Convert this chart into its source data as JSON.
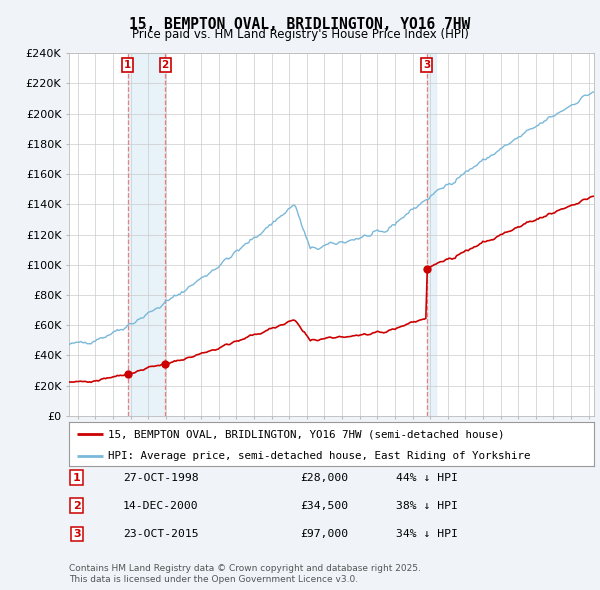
{
  "title": "15, BEMPTON OVAL, BRIDLINGTON, YO16 7HW",
  "subtitle": "Price paid vs. HM Land Registry's House Price Index (HPI)",
  "legend_entry1": "15, BEMPTON OVAL, BRIDLINGTON, YO16 7HW (semi-detached house)",
  "legend_entry2": "HPI: Average price, semi-detached house, East Riding of Yorkshire",
  "sale_dates": [
    "27-OCT-1998",
    "14-DEC-2000",
    "23-OCT-2015"
  ],
  "sale_prices": [
    28000,
    34500,
    97000
  ],
  "sale_labels": [
    "1",
    "2",
    "3"
  ],
  "sale_hpi_pct": [
    "44% ↓ HPI",
    "38% ↓ HPI",
    "34% ↓ HPI"
  ],
  "footnote1": "Contains HM Land Registry data © Crown copyright and database right 2025.",
  "footnote2": "This data is licensed under the Open Government Licence v3.0.",
  "ylim": [
    0,
    240000
  ],
  "yticks": [
    0,
    20000,
    40000,
    60000,
    80000,
    100000,
    120000,
    140000,
    160000,
    180000,
    200000,
    220000,
    240000
  ],
  "ytick_labels": [
    "£0",
    "£20K",
    "£40K",
    "£60K",
    "£80K",
    "£100K",
    "£120K",
    "£140K",
    "£160K",
    "£180K",
    "£200K",
    "£220K",
    "£240K"
  ],
  "hpi_color": "#7ab8d9",
  "hpi_shade_color": "#ddeef6",
  "price_color": "#cc0000",
  "background_color": "#f0f4f8",
  "plot_bg_color": "#ffffff",
  "grid_color": "#cccccc",
  "sale_box_color": "#cc0000",
  "vline_color": "#e88080",
  "sale_years_decimal": [
    1998.83,
    2000.96,
    2015.81
  ],
  "xlim_left": 1995.5,
  "xlim_right": 2025.3
}
